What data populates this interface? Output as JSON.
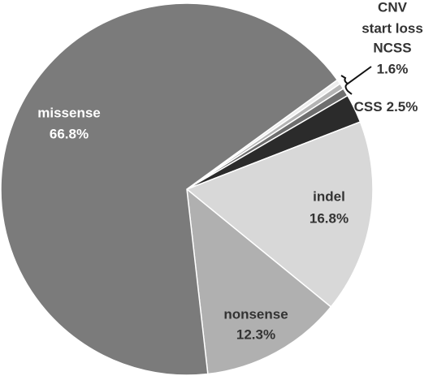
{
  "chart_data": {
    "type": "pie",
    "categories": [
      "CNV",
      "start loss",
      "NCSS",
      "CSS",
      "indel",
      "nonsense",
      "missense"
    ],
    "values": [
      0.4,
      0.5,
      0.7,
      2.5,
      16.8,
      12.3,
      66.8
    ],
    "value_labels": [
      null,
      null,
      null,
      "2.5%",
      "16.8%",
      "12.3%",
      "66.8%"
    ],
    "colors": [
      "#eeeeee",
      "#b4b4b4",
      "#6e6e6e",
      "#2b2b2b",
      "#d8d8d8",
      "#b0b0b0",
      "#7b7b7b"
    ],
    "group": {
      "value": 1.6,
      "value_label": "1.6%"
    }
  }
}
